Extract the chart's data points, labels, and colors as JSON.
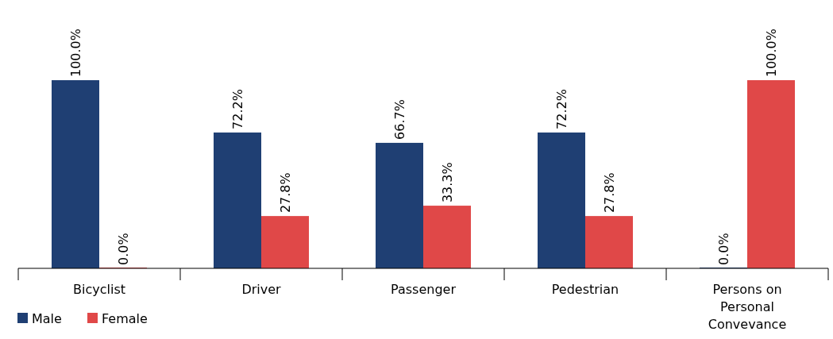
{
  "chart_data": {
    "type": "bar",
    "categories": [
      "Bicyclist",
      "Driver",
      "Passenger",
      "Pedestrian",
      "Persons on Personal Convevance"
    ],
    "series": [
      {
        "name": "Male",
        "color": "#1f3f73",
        "values": [
          100.0,
          72.2,
          66.7,
          72.2,
          0.0
        ],
        "value_labels": [
          "100.0%",
          "72.2%",
          "66.7%",
          "72.2%",
          "0.0%"
        ]
      },
      {
        "name": "Female",
        "color": "#e04848",
        "values": [
          0.0,
          27.8,
          33.3,
          27.8,
          100.0
        ],
        "value_labels": [
          "0.0%",
          "27.8%",
          "33.3%",
          "27.8%",
          "100.0%"
        ]
      }
    ],
    "legend": "bottom left"
  }
}
